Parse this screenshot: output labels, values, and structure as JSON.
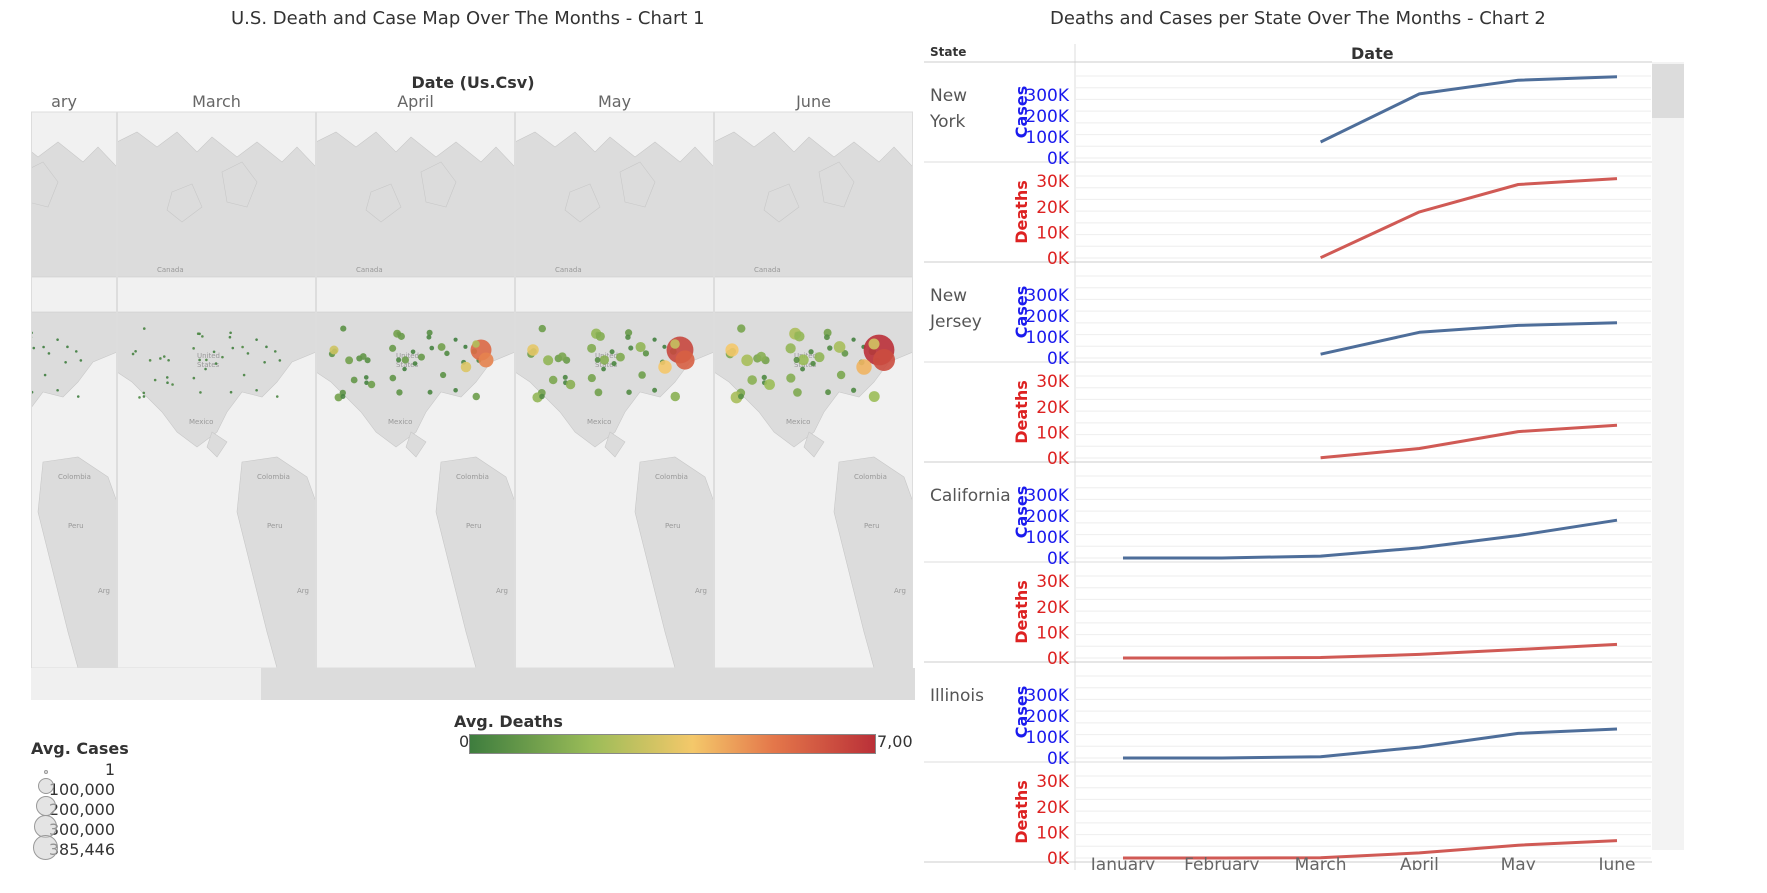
{
  "titles": {
    "chart1": "U.S. Death and Case Map Over The Months - Chart 1",
    "chart2": "Deaths and Cases per State Over The Months - Chart 2"
  },
  "map": {
    "header": "Date (Us.Csv)",
    "columns": [
      "ary",
      "March",
      "April",
      "May",
      "June"
    ],
    "place_labels": {
      "canada": "Canada",
      "us_line1": "United",
      "us_line2": "States",
      "mexico": "Mexico",
      "colombia": "Colombia",
      "peru": "Peru",
      "arg": "Arg"
    },
    "colors": {
      "ocean": "#f1f1f1",
      "land": "#dcdcdc",
      "low": "#3e7d3e",
      "mid": "#f4c86a",
      "high": "#ba3038"
    }
  },
  "legend": {
    "cases_title": "Avg. Cases",
    "cases_values": [
      "1",
      "100,000",
      "200,000",
      "300,000",
      "385,446"
    ],
    "deaths_title": "Avg. Deaths",
    "deaths_min": "0",
    "deaths_max": "7,00"
  },
  "chart_data": {
    "type": "line",
    "title": "Deaths and Cases per State Over The Months - Chart 2",
    "row_header": "State",
    "column_header": "Date",
    "x": [
      "January",
      "February",
      "March",
      "April",
      "May",
      "June"
    ],
    "measures": {
      "cases": {
        "label": "Cases",
        "color": "#4e6e9a",
        "label_color": "#1a1aee",
        "ticks": [
          "0K",
          "100K",
          "200K",
          "300K"
        ],
        "ylim": [
          0,
          390000
        ]
      },
      "deaths": {
        "label": "Deaths",
        "color": "#d05a55",
        "label_color": "#dd2222",
        "ticks": [
          "0K",
          "10K",
          "20K",
          "30K"
        ],
        "ylim": [
          0,
          32000
        ]
      }
    },
    "states": [
      {
        "name": "New York",
        "cases": [
          null,
          null,
          76000,
          305000,
          370000,
          386000
        ],
        "deaths": [
          null,
          null,
          100,
          18000,
          28700,
          31000
        ]
      },
      {
        "name": "New Jersey",
        "cases": [
          null,
          null,
          18000,
          122000,
          155000,
          168000
        ],
        "deaths": [
          null,
          null,
          100,
          3700,
          10300,
          12800
        ]
      },
      {
        "name": "California",
        "cases": [
          20,
          50,
          9000,
          48000,
          107000,
          180000
        ],
        "deaths": [
          0,
          0,
          200,
          1400,
          3300,
          5300
        ]
      },
      {
        "name": "Illinois",
        "cases": [
          5,
          10,
          6000,
          52000,
          117000,
          138000
        ],
        "deaths": [
          0,
          0,
          100,
          2000,
          5000,
          6800
        ]
      }
    ]
  }
}
